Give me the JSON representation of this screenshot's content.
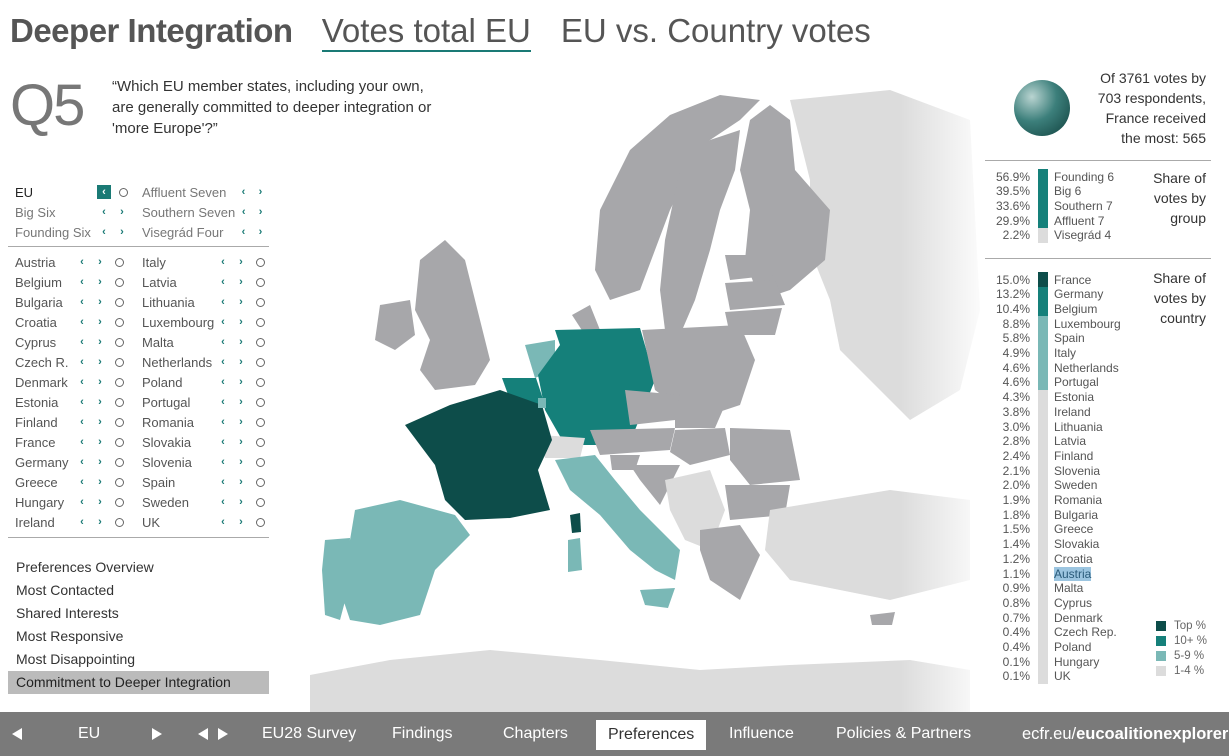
{
  "title": {
    "main": "Deeper Integration",
    "view1": "Votes total EU",
    "view2": "EU vs. Country votes"
  },
  "question": {
    "number": "Q5",
    "text": "“Which EU member states, including your own, are generally committed to deeper integration or 'more Europe'?”"
  },
  "groups": [
    [
      {
        "name": "EU",
        "selected": true
      },
      {
        "name": "Affluent Seven",
        "selected": false
      }
    ],
    [
      {
        "name": "Big Six",
        "selected": false
      },
      {
        "name": "Southern Seven",
        "selected": false
      }
    ],
    [
      {
        "name": "Founding Six",
        "selected": false
      },
      {
        "name": "Visegrád Four",
        "selected": false
      }
    ]
  ],
  "countries_left": [
    "Austria",
    "Belgium",
    "Bulgaria",
    "Croatia",
    "Cyprus",
    "Czech R.",
    "Denmark",
    "Estonia",
    "Finland",
    "France",
    "Germany",
    "Greece",
    "Hungary",
    "Ireland"
  ],
  "countries_right": [
    "Italy",
    "Latvia",
    "Lithuania",
    "Luxembourg",
    "Malta",
    "Netherlands",
    "Poland",
    "Portugal",
    "Romania",
    "Slovakia",
    "Slovenia",
    "Spain",
    "Sweden",
    "UK"
  ],
  "menu": [
    "Preferences Overview",
    "Most Contacted",
    "Shared Interests",
    "Most Responsive",
    "Most Disappointing",
    "Commitment to Deeper Integration"
  ],
  "menu_active_index": 5,
  "stats": {
    "line1": "Of 3761 votes by",
    "line2": "703 respondents,",
    "line3": "France received",
    "line4": "the most: 565"
  },
  "group_share": {
    "title": [
      "Share of",
      "votes by",
      "group"
    ],
    "rows": [
      {
        "pct": "56.9%",
        "label": "Founding 6",
        "tier": "10"
      },
      {
        "pct": "39.5%",
        "label": "Big 6",
        "tier": "10"
      },
      {
        "pct": "33.6%",
        "label": "Southern 7",
        "tier": "10"
      },
      {
        "pct": "29.9%",
        "label": "Affluent 7",
        "tier": "10"
      },
      {
        "pct": "2.2%",
        "label": "Visegrád 4",
        "tier": "1"
      }
    ]
  },
  "country_share": {
    "title": [
      "Share of",
      "votes by",
      "country"
    ],
    "rows": [
      {
        "pct": "15.0%",
        "label": "France",
        "tier": "top"
      },
      {
        "pct": "13.2%",
        "label": "Germany",
        "tier": "10"
      },
      {
        "pct": "10.4%",
        "label": "Belgium",
        "tier": "10"
      },
      {
        "pct": "8.8%",
        "label": "Luxembourg",
        "tier": "5"
      },
      {
        "pct": "5.8%",
        "label": "Spain",
        "tier": "5"
      },
      {
        "pct": "4.9%",
        "label": "Italy",
        "tier": "5"
      },
      {
        "pct": "4.6%",
        "label": "Netherlands",
        "tier": "5"
      },
      {
        "pct": "4.6%",
        "label": "Portugal",
        "tier": "5"
      },
      {
        "pct": "4.3%",
        "label": "Estonia",
        "tier": "1"
      },
      {
        "pct": "3.8%",
        "label": "Ireland",
        "tier": "1"
      },
      {
        "pct": "3.0%",
        "label": "Lithuania",
        "tier": "1"
      },
      {
        "pct": "2.8%",
        "label": "Latvia",
        "tier": "1"
      },
      {
        "pct": "2.4%",
        "label": "Finland",
        "tier": "1"
      },
      {
        "pct": "2.1%",
        "label": "Slovenia",
        "tier": "1"
      },
      {
        "pct": "2.0%",
        "label": "Sweden",
        "tier": "1"
      },
      {
        "pct": "1.9%",
        "label": "Romania",
        "tier": "1"
      },
      {
        "pct": "1.8%",
        "label": "Bulgaria",
        "tier": "1"
      },
      {
        "pct": "1.5%",
        "label": "Greece",
        "tier": "1"
      },
      {
        "pct": "1.4%",
        "label": "Slovakia",
        "tier": "1"
      },
      {
        "pct": "1.2%",
        "label": "Croatia",
        "tier": "1"
      },
      {
        "pct": "1.1%",
        "label": "Austria",
        "tier": "1",
        "highlight": true
      },
      {
        "pct": "0.9%",
        "label": "Malta",
        "tier": "1"
      },
      {
        "pct": "0.8%",
        "label": "Cyprus",
        "tier": "1"
      },
      {
        "pct": "0.7%",
        "label": "Denmark",
        "tier": "1"
      },
      {
        "pct": "0.4%",
        "label": "Czech Rep.",
        "tier": "1"
      },
      {
        "pct": "0.4%",
        "label": "Poland",
        "tier": "1"
      },
      {
        "pct": "0.1%",
        "label": "Hungary",
        "tier": "1"
      },
      {
        "pct": "0.1%",
        "label": "UK",
        "tier": "1"
      }
    ]
  },
  "legend": [
    {
      "label": "Top %",
      "color": "#0d4d4a"
    },
    {
      "label": "10+ %",
      "color": "#15807a"
    },
    {
      "label": "5-9 %",
      "color": "#7ab8b6"
    },
    {
      "label": "1-4 %",
      "color": "#dcdcdc"
    }
  ],
  "colors": {
    "top": "#0d4d4a",
    "10": "#15807a",
    "5": "#7ab8b6",
    "1": "#dcdcdc",
    "noneu": "#a7a7aa",
    "sea": "#ffffff",
    "accent": "#1a7a75"
  },
  "footer": {
    "prev_icon": "triangle-left-icon",
    "eu_label": "EU",
    "next_icon": "triangle-right-icon",
    "swap_icon": "double-triangle-icon",
    "items": [
      "EU28 Survey",
      "Findings",
      "Chapters",
      "Preferences",
      "Influence",
      "Policies & Partners"
    ],
    "active": "Preferences",
    "url_plain": "ecfr.eu/",
    "url_bold": "eucoalitionexplorer"
  }
}
